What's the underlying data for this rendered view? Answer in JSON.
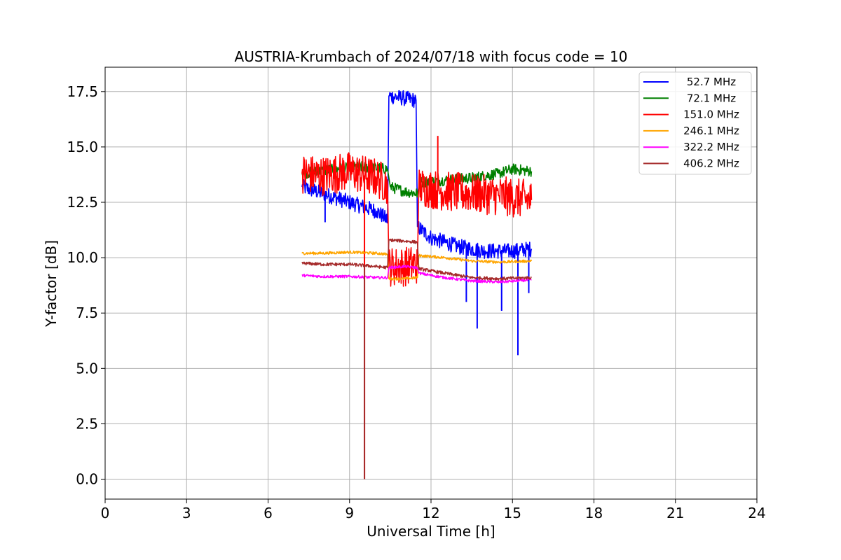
{
  "chart_data": {
    "type": "line",
    "title": "AUSTRIA-Krumbach of 2024/07/18 with focus code = 10",
    "xlabel": "Universal Time [h]",
    "ylabel": "Y-factor [dB]",
    "xlim": [
      0,
      24
    ],
    "ylim": [
      -0.9,
      18.6
    ],
    "xticks": [
      0,
      3,
      6,
      9,
      12,
      15,
      18,
      21,
      24
    ],
    "xtick_labels": [
      "0",
      "3",
      "6",
      "9",
      "12",
      "15",
      "18",
      "21",
      "24"
    ],
    "yticks": [
      0,
      2.5,
      5,
      7.5,
      10,
      12.5,
      15,
      17.5
    ],
    "ytick_labels": [
      "0.0",
      "2.5",
      "5.0",
      "7.5",
      "10.0",
      "12.5",
      "15.0",
      "17.5"
    ],
    "grid": true,
    "legend_position": "top-right",
    "series": [
      {
        "name": " 52.7 MHz",
        "color": "#0000ff",
        "points": [
          [
            7.25,
            13.2
          ],
          [
            8.0,
            12.9
          ],
          [
            9.0,
            12.5
          ],
          [
            10.0,
            12.1
          ],
          [
            10.4,
            11.7
          ],
          [
            10.45,
            17.3
          ],
          [
            11.0,
            17.2
          ],
          [
            11.45,
            17.1
          ],
          [
            11.5,
            11.4
          ],
          [
            12.0,
            10.9
          ],
          [
            13.0,
            10.5
          ],
          [
            14.0,
            10.3
          ],
          [
            15.0,
            10.3
          ],
          [
            15.7,
            10.4
          ]
        ],
        "spikes": [
          [
            8.1,
            11.6
          ],
          [
            13.3,
            8.0
          ],
          [
            13.7,
            6.8
          ],
          [
            14.6,
            7.6
          ],
          [
            15.2,
            5.6
          ],
          [
            15.6,
            8.4
          ]
        ]
      },
      {
        "name": " 72.1 MHz",
        "color": "#008000",
        "points": [
          [
            7.25,
            13.8
          ],
          [
            8.5,
            14.0
          ],
          [
            9.5,
            14.1
          ],
          [
            10.4,
            14.0
          ],
          [
            10.5,
            13.2
          ],
          [
            11.0,
            13.0
          ],
          [
            11.5,
            12.9
          ],
          [
            11.6,
            13.4
          ],
          [
            12.5,
            13.5
          ],
          [
            13.5,
            13.6
          ],
          [
            14.5,
            13.8
          ],
          [
            15.0,
            14.0
          ],
          [
            15.7,
            13.9
          ]
        ],
        "spikes": []
      },
      {
        "name": "151.0 MHz",
        "color": "#ff0000",
        "points": [
          [
            7.25,
            13.8
          ],
          [
            8.0,
            13.7
          ],
          [
            9.0,
            13.9
          ],
          [
            10.0,
            13.6
          ],
          [
            10.4,
            13.3
          ],
          [
            10.45,
            9.6
          ],
          [
            11.0,
            9.6
          ],
          [
            11.5,
            9.7
          ],
          [
            11.55,
            13.2
          ],
          [
            12.5,
            13.0
          ],
          [
            13.5,
            12.9
          ],
          [
            14.5,
            12.8
          ],
          [
            15.7,
            12.6
          ]
        ],
        "spikes": [
          [
            9.55,
            0.0
          ],
          [
            12.25,
            15.5
          ]
        ]
      },
      {
        "name": "246.1 MHz",
        "color": "#ffa500",
        "points": [
          [
            7.25,
            10.2
          ],
          [
            8.0,
            10.2
          ],
          [
            9.0,
            10.25
          ],
          [
            10.0,
            10.2
          ],
          [
            10.4,
            10.15
          ],
          [
            10.45,
            9.05
          ],
          [
            11.0,
            9.05
          ],
          [
            11.5,
            9.1
          ],
          [
            11.55,
            10.1
          ],
          [
            12.5,
            10.0
          ],
          [
            13.5,
            9.85
          ],
          [
            14.5,
            9.8
          ],
          [
            15.7,
            9.85
          ]
        ],
        "spikes": []
      },
      {
        "name": "322.2 MHz",
        "color": "#ff00ff",
        "points": [
          [
            7.25,
            9.2
          ],
          [
            8.0,
            9.15
          ],
          [
            9.0,
            9.15
          ],
          [
            10.0,
            9.1
          ],
          [
            10.4,
            9.1
          ],
          [
            10.45,
            9.55
          ],
          [
            11.0,
            9.6
          ],
          [
            11.5,
            9.55
          ],
          [
            11.55,
            9.3
          ],
          [
            12.5,
            9.1
          ],
          [
            13.5,
            8.95
          ],
          [
            14.5,
            8.9
          ],
          [
            15.7,
            9.0
          ]
        ],
        "spikes": []
      },
      {
        "name": "406.2 MHz",
        "color": "#a52a2a",
        "points": [
          [
            7.25,
            9.75
          ],
          [
            8.0,
            9.7
          ],
          [
            9.0,
            9.7
          ],
          [
            10.0,
            9.6
          ],
          [
            10.4,
            9.55
          ],
          [
            10.45,
            10.8
          ],
          [
            11.0,
            10.75
          ],
          [
            11.5,
            10.7
          ],
          [
            11.55,
            9.5
          ],
          [
            12.5,
            9.3
          ],
          [
            13.5,
            9.1
          ],
          [
            14.5,
            9.05
          ],
          [
            15.7,
            9.1
          ]
        ],
        "spikes": [
          [
            9.55,
            0.0
          ]
        ]
      }
    ]
  }
}
